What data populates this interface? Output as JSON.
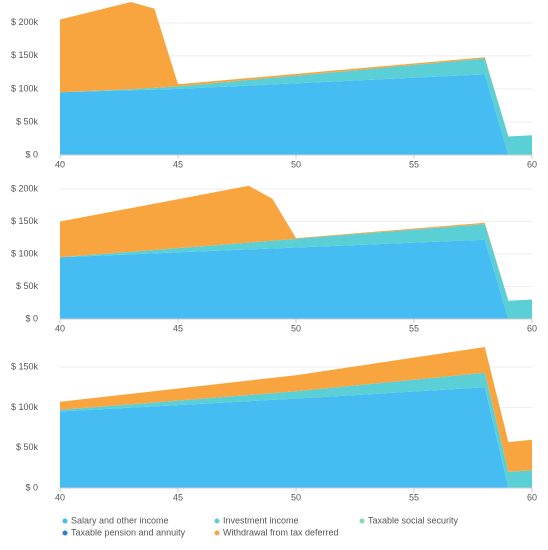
{
  "chart_data": [
    {
      "type": "stacked_area",
      "x": [
        40,
        43,
        44,
        45,
        58,
        59,
        60
      ],
      "xlim": [
        40,
        60
      ],
      "xticks": [
        40,
        45,
        50,
        55,
        60
      ],
      "ylim": [
        0,
        230000
      ],
      "yticks": [
        {
          "value": 0,
          "label": "$ 0"
        },
        {
          "value": 50000,
          "label": "$ 50k"
        },
        {
          "value": 100000,
          "label": "$ 100k"
        },
        {
          "value": 150000,
          "label": "$ 150k"
        },
        {
          "value": 200000,
          "label": "$ 200k"
        }
      ],
      "grid": true,
      "series": [
        {
          "color": "#45bdf2",
          "values": [
            95000,
            98000,
            99000,
            100000,
            122000,
            0,
            0
          ]
        },
        {
          "color": "#5acfd6",
          "values": [
            0,
            1500,
            2500,
            4000,
            24000,
            28000,
            30000
          ]
        },
        {
          "color": "#86dba6",
          "values": [
            0,
            0,
            0,
            0,
            0,
            0,
            0
          ]
        },
        {
          "color": "#2c7fd6",
          "values": [
            0,
            0,
            0,
            0,
            0,
            0,
            0
          ]
        },
        {
          "color": "#f8a540",
          "values": [
            110000,
            132000,
            120000,
            3000,
            2000,
            0,
            0
          ]
        }
      ]
    },
    {
      "type": "stacked_area",
      "x": [
        40,
        48,
        49,
        50,
        58,
        59,
        60
      ],
      "xlim": [
        40,
        60
      ],
      "xticks": [
        40,
        45,
        50,
        55,
        60
      ],
      "ylim": [
        0,
        220000
      ],
      "yticks": [
        {
          "value": 0,
          "label": "$ 0"
        },
        {
          "value": 50000,
          "label": "$ 50k"
        },
        {
          "value": 100000,
          "label": "$ 100k"
        },
        {
          "value": 150000,
          "label": "$ 150k"
        },
        {
          "value": 200000,
          "label": "$ 200k"
        }
      ],
      "grid": true,
      "series": [
        {
          "color": "#45bdf2",
          "values": [
            95000,
            107000,
            108500,
            110000,
            122000,
            0,
            0
          ]
        },
        {
          "color": "#5acfd6",
          "values": [
            0,
            10500,
            12000,
            13500,
            24000,
            28000,
            30000
          ]
        },
        {
          "color": "#86dba6",
          "values": [
            0,
            0,
            0,
            0,
            0,
            0,
            0
          ]
        },
        {
          "color": "#2c7fd6",
          "values": [
            0,
            0,
            0,
            0,
            0,
            0,
            0
          ]
        },
        {
          "color": "#f8a540",
          "values": [
            55000,
            87500,
            64500,
            1000,
            2000,
            0,
            0
          ]
        }
      ]
    },
    {
      "type": "stacked_area",
      "x": [
        40,
        50,
        58,
        59,
        60
      ],
      "xlim": [
        40,
        60
      ],
      "xticks": [
        40,
        45,
        50,
        55,
        60
      ],
      "ylim": [
        0,
        180000
      ],
      "yticks": [
        {
          "value": 0,
          "label": "$ 0"
        },
        {
          "value": 50000,
          "label": "$ 50k"
        },
        {
          "value": 100000,
          "label": "$ 100k"
        },
        {
          "value": 150000,
          "label": "$ 150k"
        }
      ],
      "grid": true,
      "series": [
        {
          "name": "Salary and other income",
          "color": "#45bdf2",
          "values": [
            95000,
            111000,
            125000,
            0,
            0
          ]
        },
        {
          "name": "Investment income",
          "color": "#5acfd6",
          "values": [
            2000,
            9000,
            18000,
            20000,
            22000
          ]
        },
        {
          "name": "Taxable social security",
          "color": "#86dba6",
          "values": [
            0,
            0,
            0,
            0,
            0
          ]
        },
        {
          "name": "Taxable pension and annuity",
          "color": "#2c7fd6",
          "values": [
            0,
            0,
            0,
            0,
            0
          ]
        },
        {
          "name": "Withdrawal from tax deferred",
          "color": "#f8a540",
          "values": [
            10000,
            20000,
            32000,
            37000,
            38000
          ]
        }
      ]
    }
  ]
}
